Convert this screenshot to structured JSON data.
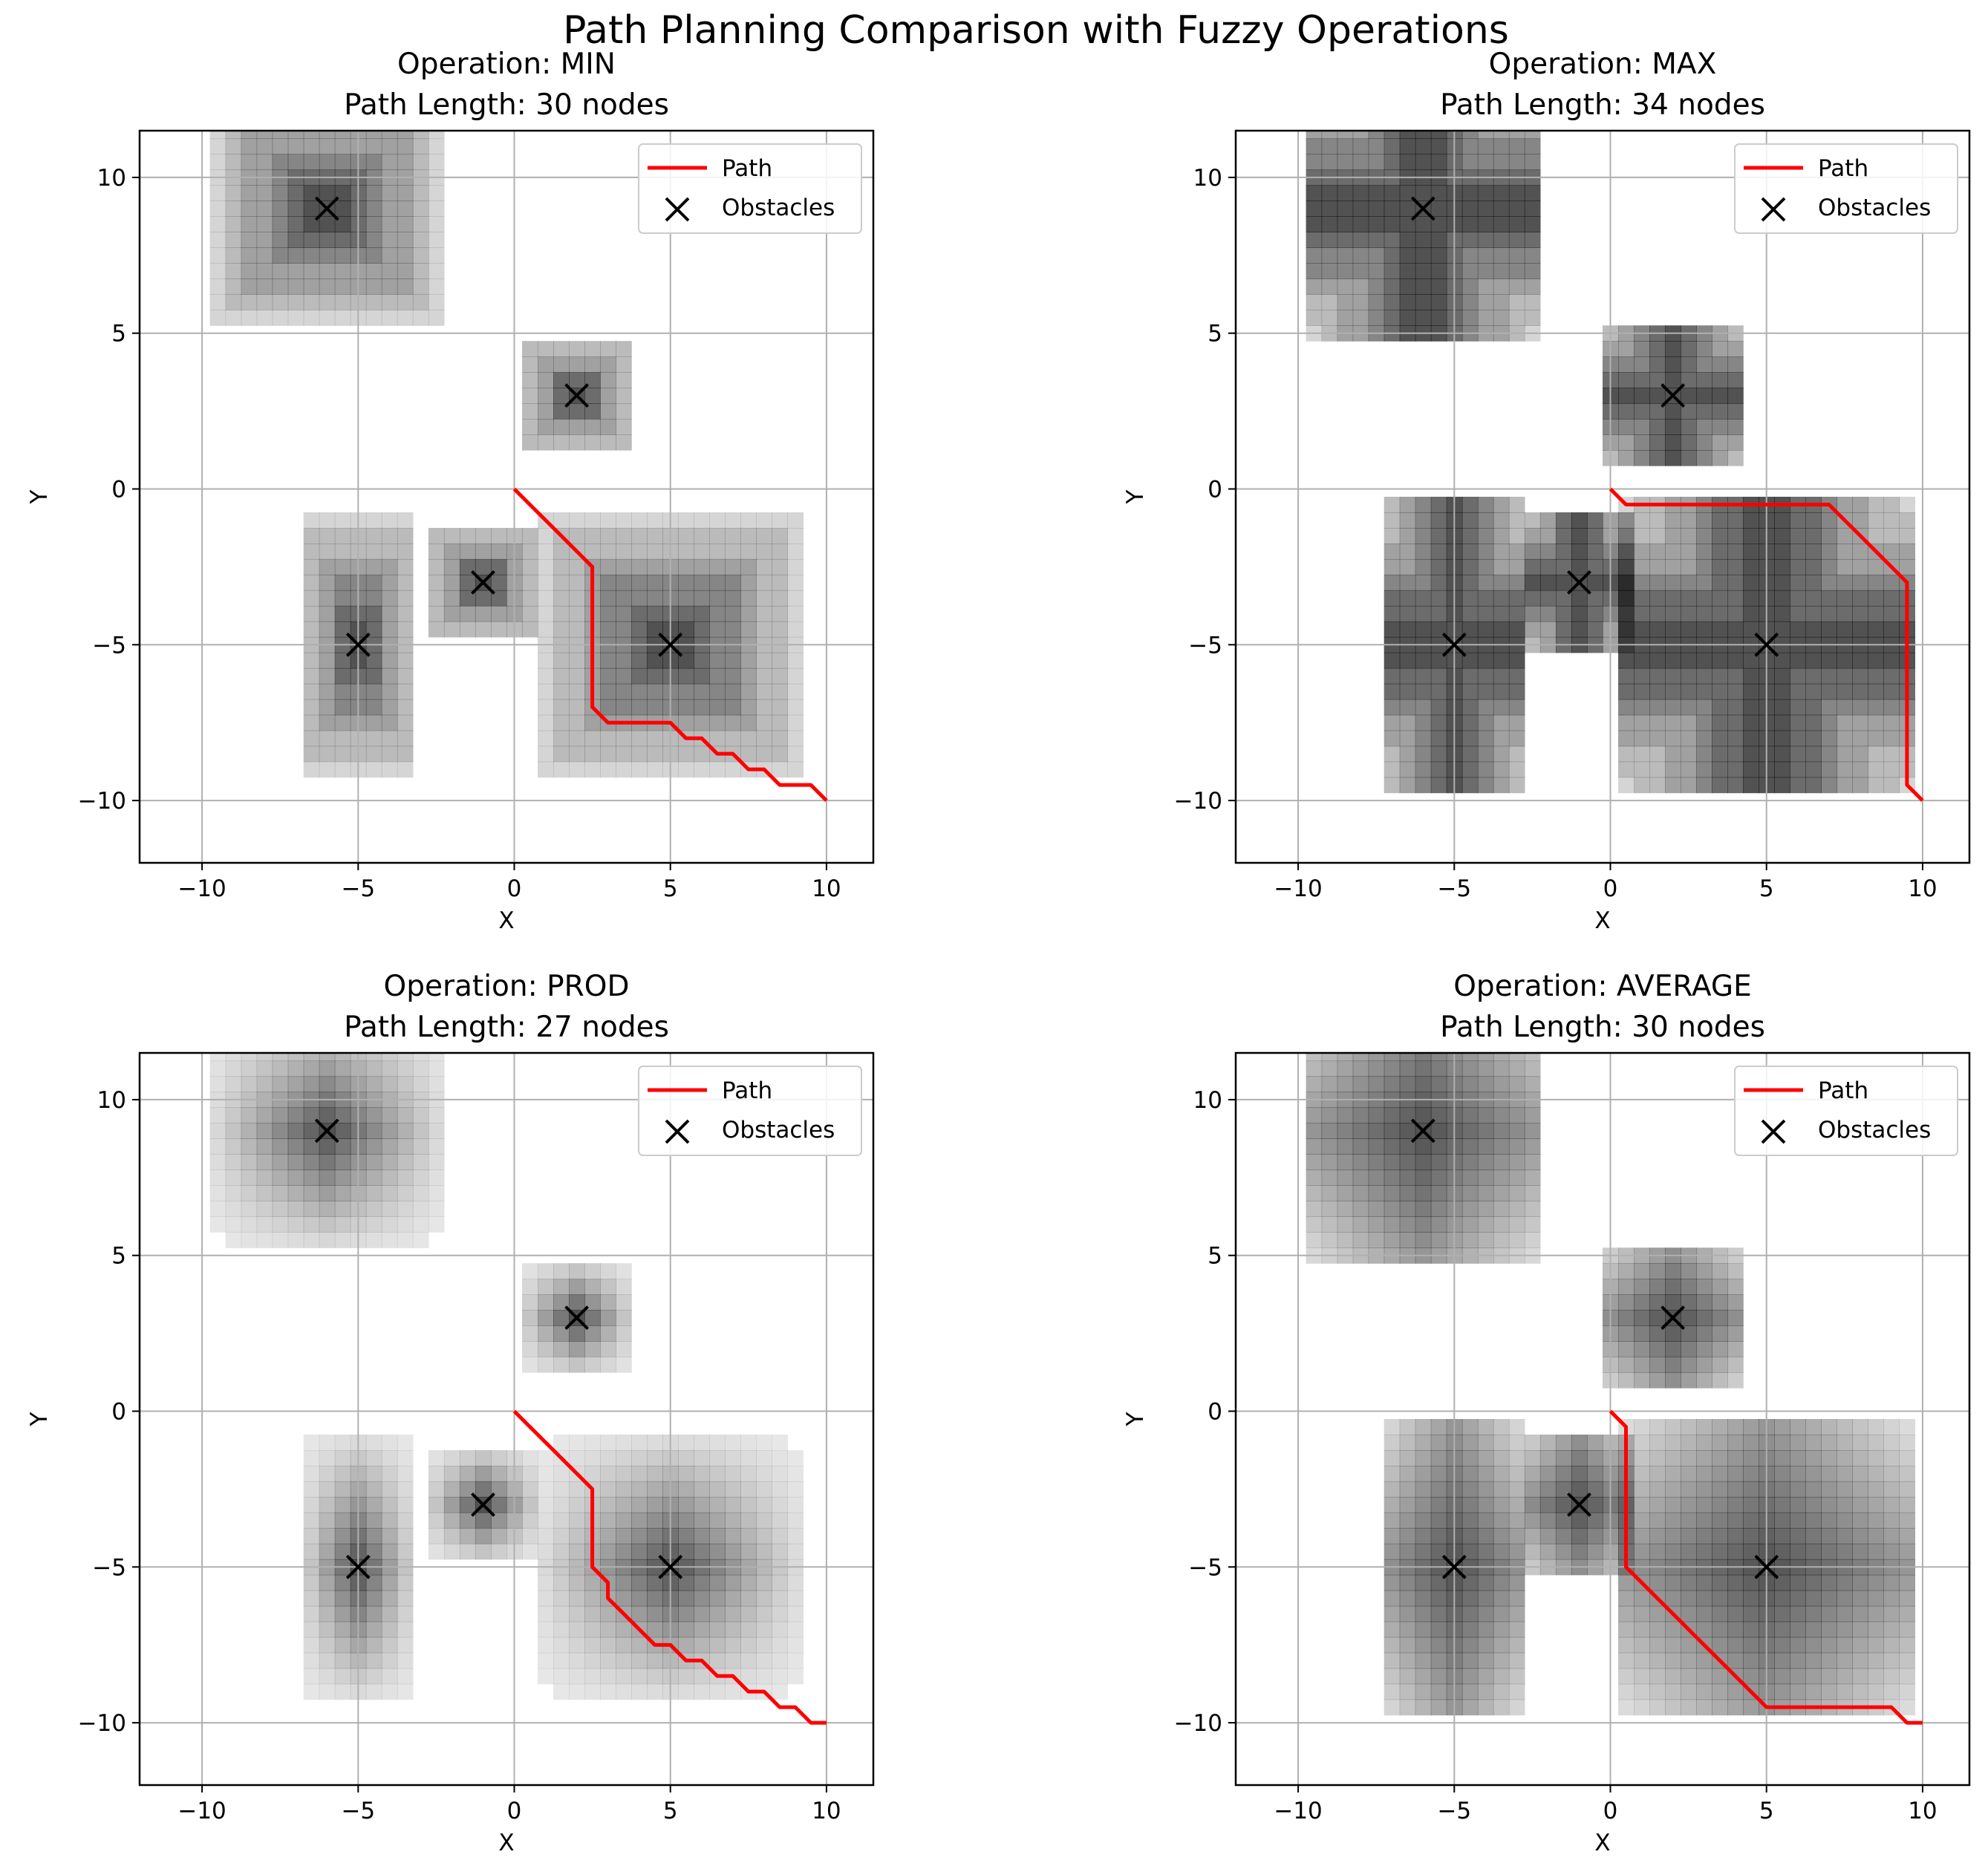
{
  "figure": {
    "suptitle": "Path Planning Comparison with Fuzzy Operations",
    "colors": {
      "path": "#ff0000",
      "obstacle": "#000000",
      "grid": "#b0b0b0",
      "shade": "#000000"
    }
  },
  "chart_data": [
    {
      "type": "line",
      "operation": "MIN",
      "title_line1": "Operation: MIN",
      "title_line2": "Path Length: 30 nodes",
      "xlabel": "X",
      "ylabel": "Y",
      "xlim": [
        -12,
        11.5
      ],
      "ylim": [
        -12,
        11.5
      ],
      "xticks": [
        -10,
        -5,
        0,
        5,
        10
      ],
      "yticks": [
        -10,
        -5,
        0,
        5,
        10
      ],
      "xtick_labels": [
        "−10",
        "−5",
        "0",
        "5",
        "10"
      ],
      "ytick_labels": [
        "−10",
        "−5",
        "0",
        "5",
        "10"
      ],
      "grid": true,
      "legend": {
        "location": "top-right",
        "entries": [
          "Path",
          "Obstacles"
        ]
      },
      "obstacles": [
        {
          "x": -6,
          "y": 9,
          "rx": 3.5,
          "ry": 3.5
        },
        {
          "x": 2,
          "y": 3,
          "rx": 1.5,
          "ry": 1.5
        },
        {
          "x": -5,
          "y": -5,
          "rx": 1.5,
          "ry": 4
        },
        {
          "x": -1,
          "y": -3,
          "rx": 1.5,
          "ry": 1.5
        },
        {
          "x": 5,
          "y": -5,
          "rx": 4,
          "ry": 4
        }
      ],
      "path": [
        [
          0,
          0
        ],
        [
          0.5,
          -0.5
        ],
        [
          1,
          -1
        ],
        [
          1.5,
          -1.5
        ],
        [
          2,
          -2
        ],
        [
          2.5,
          -2.5
        ],
        [
          2.5,
          -3
        ],
        [
          2.5,
          -3.5
        ],
        [
          2.5,
          -4
        ],
        [
          2.5,
          -4.5
        ],
        [
          2.5,
          -5
        ],
        [
          2.5,
          -5.5
        ],
        [
          2.5,
          -6
        ],
        [
          2.5,
          -6.5
        ],
        [
          2.5,
          -7
        ],
        [
          3,
          -7.5
        ],
        [
          3.5,
          -7.5
        ],
        [
          4,
          -7.5
        ],
        [
          4.5,
          -7.5
        ],
        [
          5,
          -7.5
        ],
        [
          5.5,
          -8
        ],
        [
          6,
          -8
        ],
        [
          6.5,
          -8.5
        ],
        [
          7,
          -8.5
        ],
        [
          7.5,
          -9
        ],
        [
          8,
          -9
        ],
        [
          8.5,
          -9.5
        ],
        [
          9,
          -9.5
        ],
        [
          9.5,
          -9.5
        ],
        [
          10,
          -10
        ]
      ]
    },
    {
      "type": "line",
      "operation": "MAX",
      "title_line1": "Operation: MAX",
      "title_line2": "Path Length: 34 nodes",
      "xlabel": "X",
      "ylabel": "Y",
      "xlim": [
        -12,
        11.5
      ],
      "ylim": [
        -12,
        11.5
      ],
      "xticks": [
        -10,
        -5,
        0,
        5,
        10
      ],
      "yticks": [
        -10,
        -5,
        0,
        5,
        10
      ],
      "xtick_labels": [
        "−10",
        "−5",
        "0",
        "5",
        "10"
      ],
      "ytick_labels": [
        "−10",
        "−5",
        "0",
        "5",
        "10"
      ],
      "grid": true,
      "legend": {
        "location": "top-right",
        "entries": [
          "Path",
          "Obstacles"
        ]
      },
      "obstacles": [
        {
          "x": -6,
          "y": 9,
          "rx": 3.5,
          "ry": 4
        },
        {
          "x": 2,
          "y": 3,
          "rx": 2,
          "ry": 2
        },
        {
          "x": -5,
          "y": -5,
          "rx": 2,
          "ry": 4.5
        },
        {
          "x": -1,
          "y": -3,
          "rx": 1.5,
          "ry": 2
        },
        {
          "x": 5,
          "y": -5,
          "rx": 4.5,
          "ry": 4.5
        }
      ],
      "path": [
        [
          0,
          0
        ],
        [
          0.5,
          -0.5
        ],
        [
          1,
          -0.5
        ],
        [
          1.5,
          -0.5
        ],
        [
          2,
          -0.5
        ],
        [
          2.5,
          -0.5
        ],
        [
          3,
          -0.5
        ],
        [
          3.5,
          -0.5
        ],
        [
          4,
          -0.5
        ],
        [
          4.5,
          -0.5
        ],
        [
          5,
          -0.5
        ],
        [
          5.5,
          -0.5
        ],
        [
          6,
          -0.5
        ],
        [
          6.5,
          -0.5
        ],
        [
          7,
          -0.5
        ],
        [
          7.5,
          -1
        ],
        [
          8,
          -1.5
        ],
        [
          8.5,
          -2
        ],
        [
          9,
          -2.5
        ],
        [
          9.5,
          -3
        ],
        [
          9.5,
          -3.5
        ],
        [
          9.5,
          -4
        ],
        [
          9.5,
          -4.5
        ],
        [
          9.5,
          -5
        ],
        [
          9.5,
          -5.5
        ],
        [
          9.5,
          -6
        ],
        [
          9.5,
          -6.5
        ],
        [
          9.5,
          -7
        ],
        [
          9.5,
          -7.5
        ],
        [
          9.5,
          -8
        ],
        [
          9.5,
          -8.5
        ],
        [
          9.5,
          -9
        ],
        [
          9.5,
          -9.5
        ],
        [
          10,
          -10
        ]
      ]
    },
    {
      "type": "line",
      "operation": "PROD",
      "title_line1": "Operation: PROD",
      "title_line2": "Path Length: 27 nodes",
      "xlabel": "X",
      "ylabel": "Y",
      "xlim": [
        -12,
        11.5
      ],
      "ylim": [
        -12,
        11.5
      ],
      "xticks": [
        -10,
        -5,
        0,
        5,
        10
      ],
      "yticks": [
        -10,
        -5,
        0,
        5,
        10
      ],
      "xtick_labels": [
        "−10",
        "−5",
        "0",
        "5",
        "10"
      ],
      "ytick_labels": [
        "−10",
        "−5",
        "0",
        "5",
        "10"
      ],
      "grid": true,
      "legend": {
        "location": "top-right",
        "entries": [
          "Path",
          "Obstacles"
        ]
      },
      "obstacles": [
        {
          "x": -6,
          "y": 9,
          "rx": 3.5,
          "ry": 3.5
        },
        {
          "x": 2,
          "y": 3,
          "rx": 1.5,
          "ry": 1.5
        },
        {
          "x": -5,
          "y": -5,
          "rx": 1.5,
          "ry": 4
        },
        {
          "x": -1,
          "y": -3,
          "rx": 1.5,
          "ry": 1.5
        },
        {
          "x": 5,
          "y": -5,
          "rx": 4,
          "ry": 4
        }
      ],
      "path": [
        [
          0,
          0
        ],
        [
          0.5,
          -0.5
        ],
        [
          1,
          -1
        ],
        [
          1.5,
          -1.5
        ],
        [
          2,
          -2
        ],
        [
          2.5,
          -2.5
        ],
        [
          2.5,
          -3
        ],
        [
          2.5,
          -3.5
        ],
        [
          2.5,
          -4
        ],
        [
          2.5,
          -4.5
        ],
        [
          2.5,
          -5
        ],
        [
          3,
          -5.5
        ],
        [
          3,
          -6
        ],
        [
          3.5,
          -6.5
        ],
        [
          4,
          -7
        ],
        [
          4.5,
          -7.5
        ],
        [
          5,
          -7.5
        ],
        [
          5.5,
          -8
        ],
        [
          6,
          -8
        ],
        [
          6.5,
          -8.5
        ],
        [
          7,
          -8.5
        ],
        [
          7.5,
          -9
        ],
        [
          8,
          -9
        ],
        [
          8.5,
          -9.5
        ],
        [
          9,
          -9.5
        ],
        [
          9.5,
          -10
        ],
        [
          10,
          -10
        ]
      ]
    },
    {
      "type": "line",
      "operation": "AVERAGE",
      "title_line1": "Operation: AVERAGE",
      "title_line2": "Path Length: 30 nodes",
      "xlabel": "X",
      "ylabel": "Y",
      "xlim": [
        -12,
        11.5
      ],
      "ylim": [
        -12,
        11.5
      ],
      "xticks": [
        -10,
        -5,
        0,
        5,
        10
      ],
      "yticks": [
        -10,
        -5,
        0,
        5,
        10
      ],
      "xtick_labels": [
        "−10",
        "−5",
        "0",
        "5",
        "10"
      ],
      "ytick_labels": [
        "−10",
        "−5",
        "0",
        "5",
        "10"
      ],
      "grid": true,
      "legend": {
        "location": "top-right",
        "entries": [
          "Path",
          "Obstacles"
        ]
      },
      "obstacles": [
        {
          "x": -6,
          "y": 9,
          "rx": 3.5,
          "ry": 4
        },
        {
          "x": 2,
          "y": 3,
          "rx": 2,
          "ry": 2
        },
        {
          "x": -5,
          "y": -5,
          "rx": 2,
          "ry": 4.5
        },
        {
          "x": -1,
          "y": -3,
          "rx": 1.5,
          "ry": 2
        },
        {
          "x": 5,
          "y": -5,
          "rx": 4.5,
          "ry": 4.5
        }
      ],
      "path": [
        [
          0,
          0
        ],
        [
          0.5,
          -0.5
        ],
        [
          0.5,
          -1
        ],
        [
          0.5,
          -1.5
        ],
        [
          0.5,
          -2
        ],
        [
          0.5,
          -2.5
        ],
        [
          0.5,
          -3
        ],
        [
          0.5,
          -3.5
        ],
        [
          0.5,
          -4
        ],
        [
          0.5,
          -4.5
        ],
        [
          0.5,
          -5
        ],
        [
          1,
          -5.5
        ],
        [
          1.5,
          -6
        ],
        [
          2,
          -6.5
        ],
        [
          2.5,
          -7
        ],
        [
          3,
          -7.5
        ],
        [
          3.5,
          -8
        ],
        [
          4,
          -8.5
        ],
        [
          4.5,
          -9
        ],
        [
          5,
          -9.5
        ],
        [
          5.5,
          -9.5
        ],
        [
          6,
          -9.5
        ],
        [
          6.5,
          -9.5
        ],
        [
          7,
          -9.5
        ],
        [
          7.5,
          -9.5
        ],
        [
          8,
          -9.5
        ],
        [
          8.5,
          -9.5
        ],
        [
          9,
          -9.5
        ],
        [
          9.5,
          -10
        ],
        [
          10,
          -10
        ]
      ]
    }
  ]
}
